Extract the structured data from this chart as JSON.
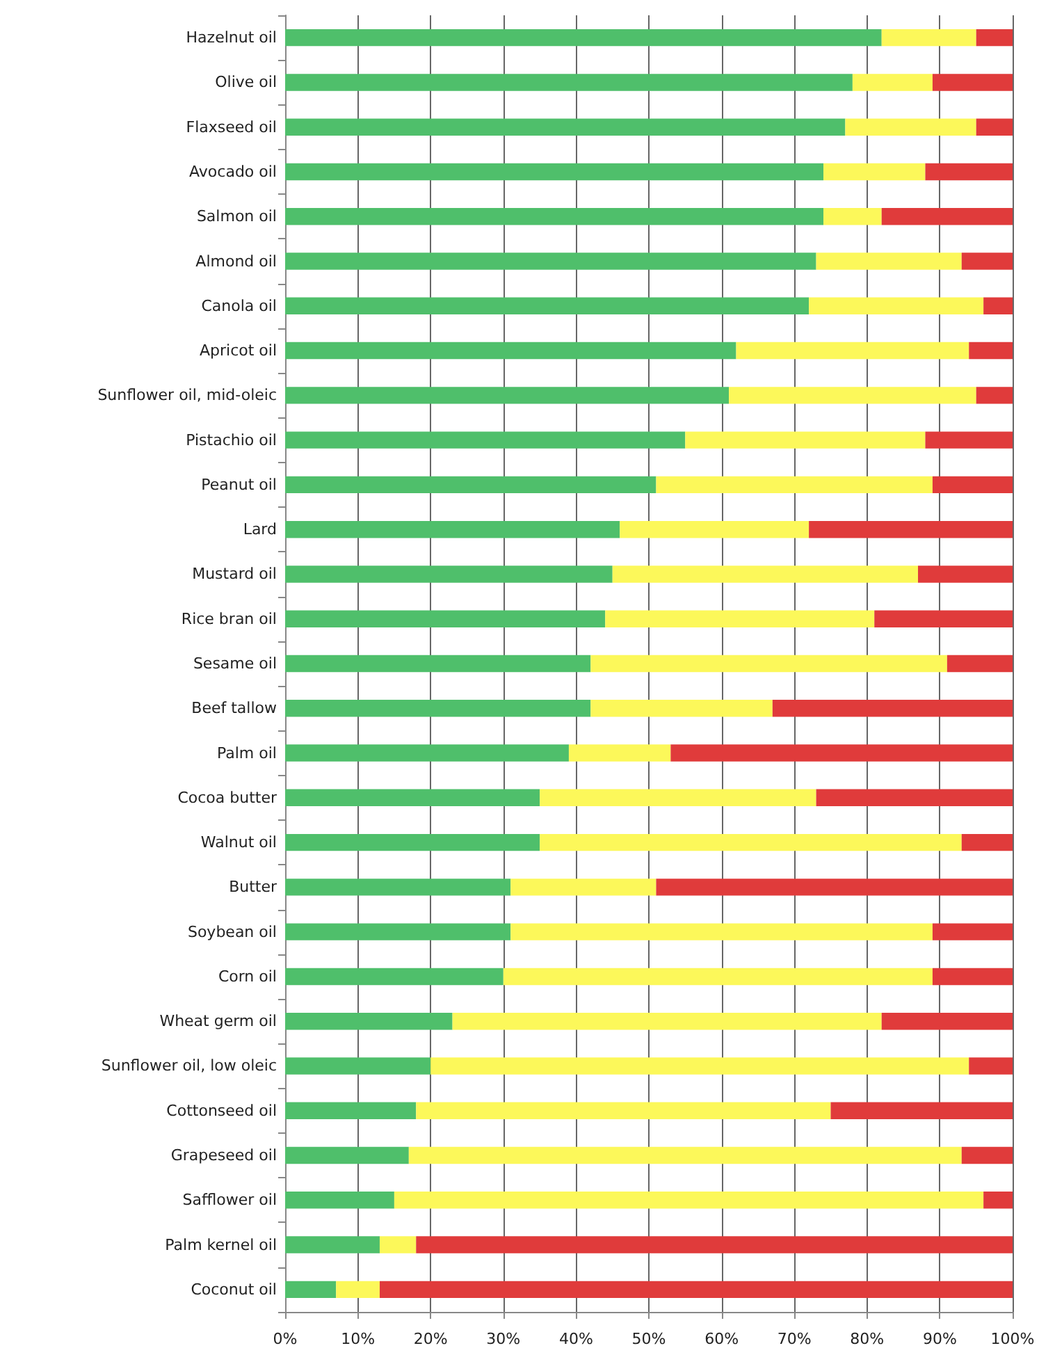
{
  "chart_data": {
    "type": "bar",
    "orientation": "horizontal",
    "stacked": true,
    "grid": "x",
    "categories": [
      "Hazelnut oil",
      "Olive oil",
      "Flaxseed oil",
      "Avocado oil",
      "Salmon oil",
      "Almond oil",
      "Canola oil",
      "Apricot oil",
      "Sunflower oil, mid-oleic",
      "Pistachio oil",
      "Peanut oil",
      "Lard",
      "Mustard oil",
      "Rice bran oil",
      "Sesame oil",
      "Beef tallow",
      "Palm oil",
      "Cocoa butter",
      "Walnut oil",
      "Butter",
      "Soybean oil",
      "Corn oil",
      "Wheat germ oil",
      "Sunflower oil, low oleic",
      "Cottonseed oil",
      "Grapeseed oil",
      "Safflower oil",
      "Palm kernel oil",
      "Coconut oil"
    ],
    "series": [
      {
        "color": "#4fbf6b",
        "values": [
          82,
          78,
          77,
          74,
          74,
          73,
          72,
          62,
          61,
          55,
          51,
          46,
          45,
          44,
          42,
          42,
          39,
          35,
          35,
          31,
          31,
          30,
          23,
          20,
          18,
          17,
          15,
          13,
          7
        ]
      },
      {
        "color": "#fcf85a",
        "values": [
          13,
          11,
          18,
          14,
          8,
          20,
          24,
          32,
          34,
          33,
          38,
          26,
          42,
          37,
          49,
          25,
          14,
          38,
          58,
          20,
          58,
          59,
          59,
          74,
          57,
          76,
          81,
          5,
          6
        ]
      },
      {
        "color": "#e03b3b",
        "values": [
          5,
          11,
          5,
          12,
          18,
          7,
          4,
          6,
          5,
          12,
          11,
          28,
          13,
          19,
          9,
          33,
          47,
          27,
          7,
          49,
          11,
          11,
          18,
          6,
          25,
          7,
          4,
          82,
          87
        ]
      }
    ],
    "xlim": [
      0,
      100
    ],
    "xticks": [
      {
        "value": 0,
        "label": "0%"
      },
      {
        "value": 10,
        "label": "10%"
      },
      {
        "value": 20,
        "label": "20%"
      },
      {
        "value": 30,
        "label": "30%"
      },
      {
        "value": 40,
        "label": "40%"
      },
      {
        "value": 50,
        "label": "50%"
      },
      {
        "value": 60,
        "label": "60%"
      },
      {
        "value": 70,
        "label": "70%"
      },
      {
        "value": 80,
        "label": "80%"
      },
      {
        "value": 90,
        "label": "90%"
      },
      {
        "value": 100,
        "label": "100%"
      }
    ]
  }
}
